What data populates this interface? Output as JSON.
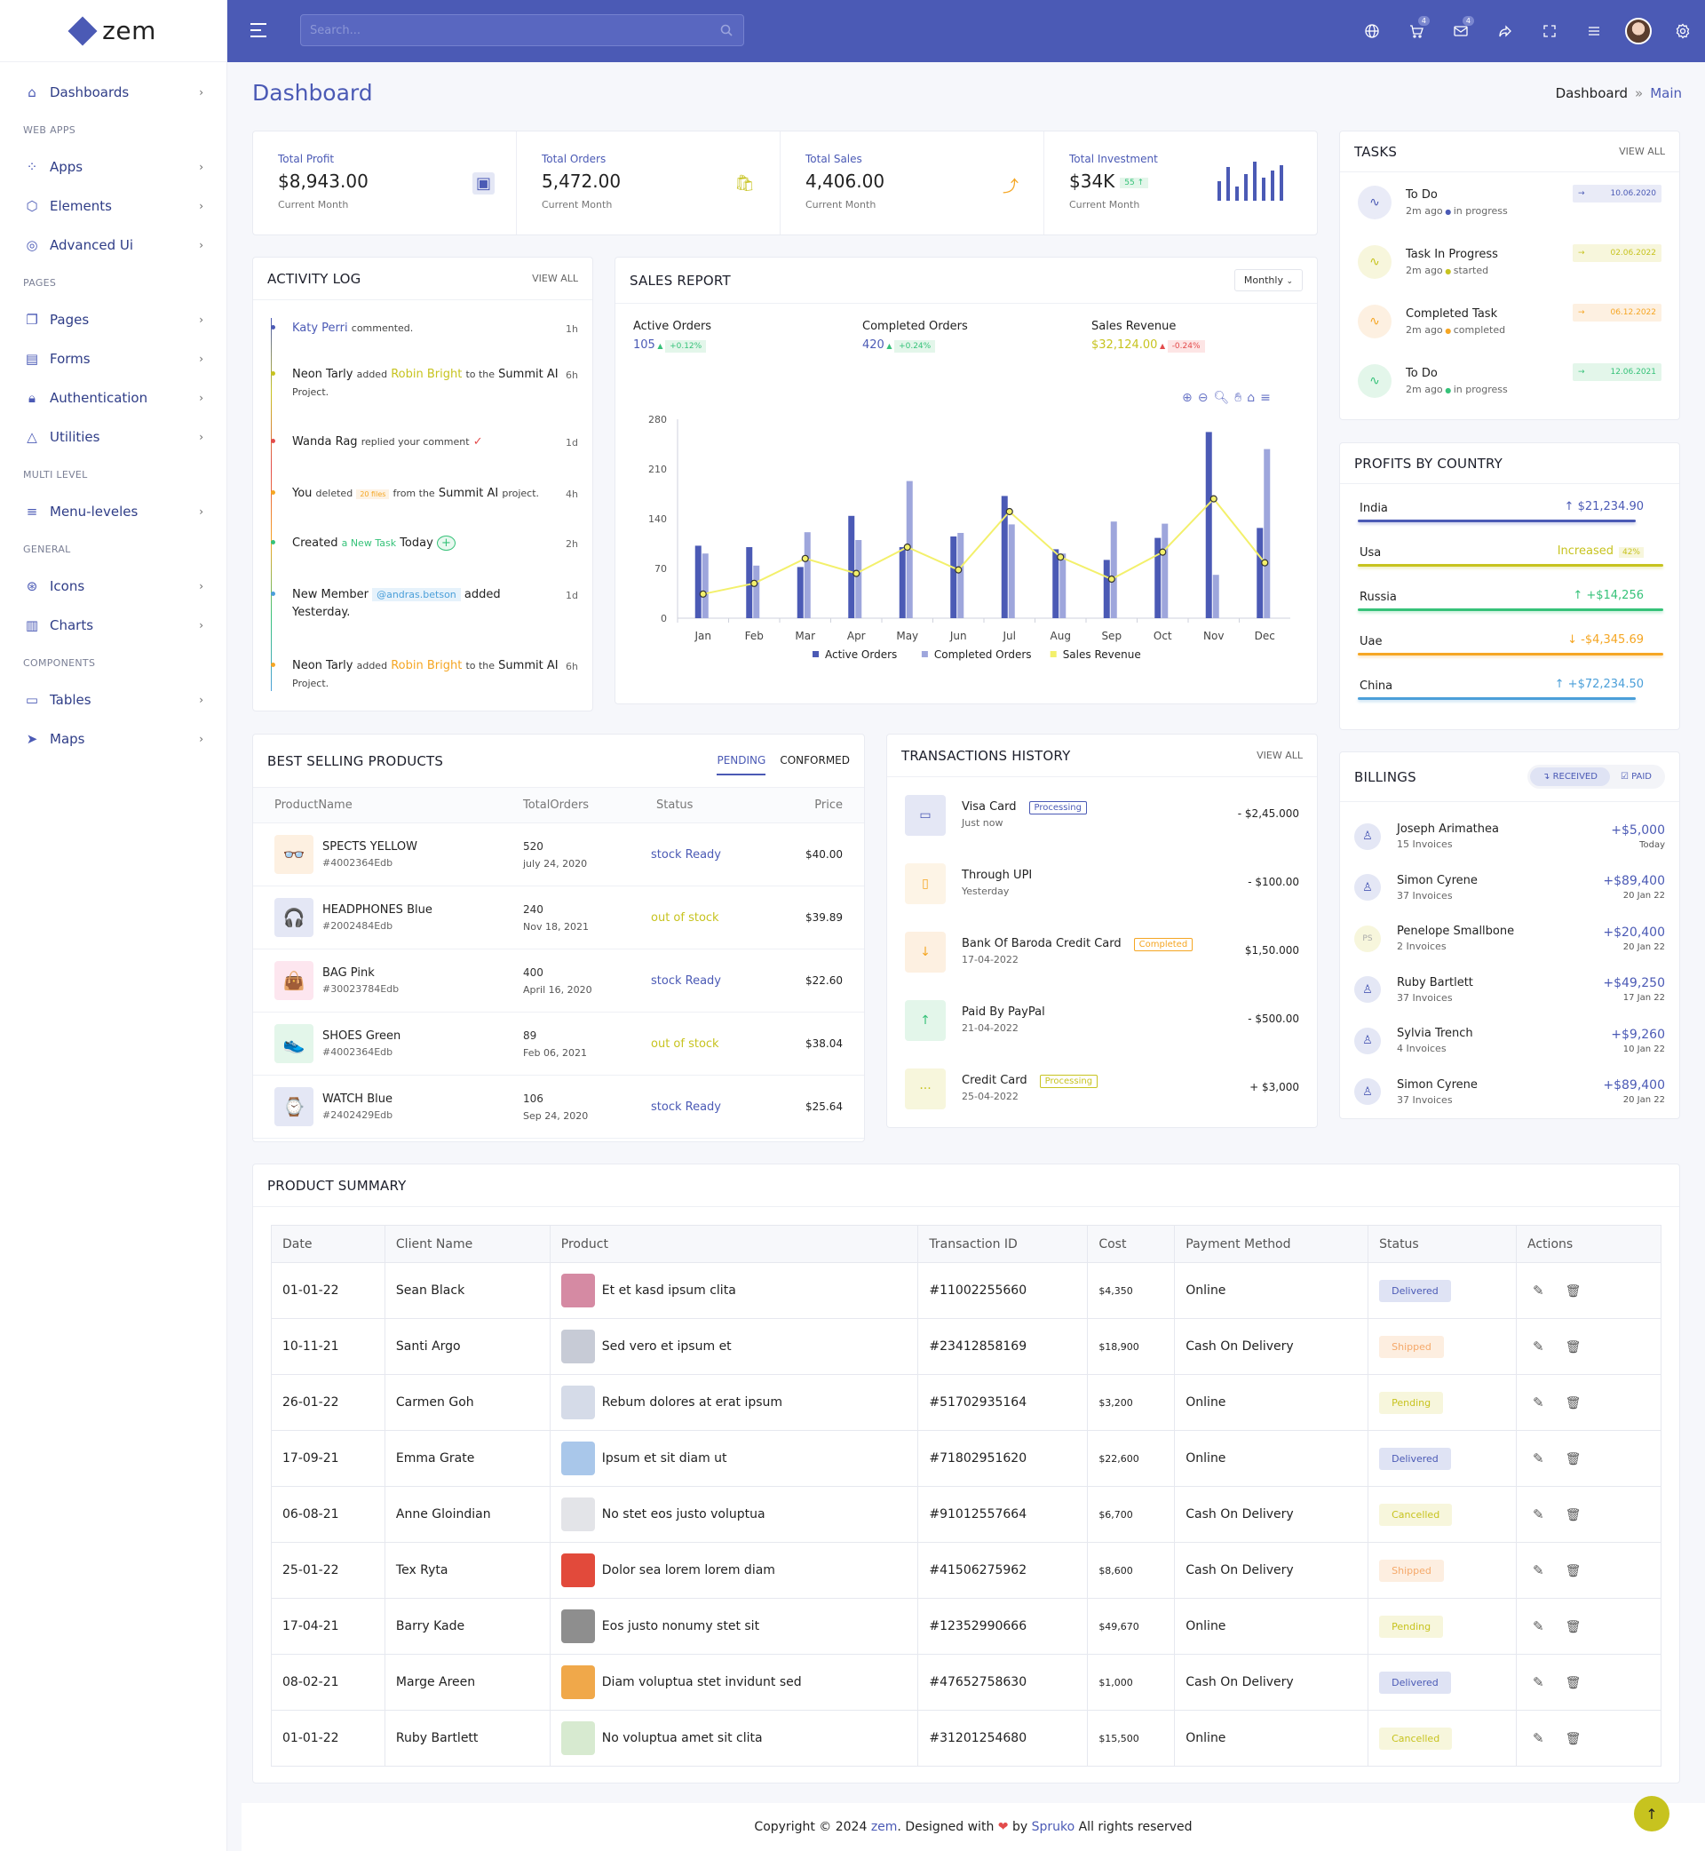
{
  "app": {
    "name": "zem"
  },
  "sidebar": {
    "items": [
      {
        "type": "item",
        "label": "Dashboards",
        "icon": "home-icon"
      },
      {
        "type": "cat",
        "label": "WEB APPS"
      },
      {
        "type": "item",
        "label": "Apps",
        "icon": "grid-icon"
      },
      {
        "type": "item",
        "label": "Elements",
        "icon": "cube-icon"
      },
      {
        "type": "item",
        "label": "Advanced Ui",
        "icon": "palette-icon"
      },
      {
        "type": "cat",
        "label": "PAGES"
      },
      {
        "type": "item",
        "label": "Pages",
        "icon": "pages-icon"
      },
      {
        "type": "item",
        "label": "Forms",
        "icon": "file-icon"
      },
      {
        "type": "item",
        "label": "Authentication",
        "icon": "lock-icon"
      },
      {
        "type": "item",
        "label": "Utilities",
        "icon": "shapes-icon"
      },
      {
        "type": "cat",
        "label": "MULTI LEVEL"
      },
      {
        "type": "item",
        "label": "Menu-leveles",
        "icon": "menu-icon"
      },
      {
        "type": "cat",
        "label": "GENERAL"
      },
      {
        "type": "item",
        "label": "Icons",
        "icon": "globe-icon"
      },
      {
        "type": "item",
        "label": "Charts",
        "icon": "bar-chart-icon"
      },
      {
        "type": "cat",
        "label": "COMPONENTS"
      },
      {
        "type": "item",
        "label": "Tables",
        "icon": "table-icon"
      },
      {
        "type": "item",
        "label": "Maps",
        "icon": "send-icon"
      }
    ]
  },
  "header": {
    "search_placeholder": "Search...",
    "cart_badge": "4",
    "mail_badge": "4"
  },
  "page": {
    "title": "Dashboard",
    "crumb_root": "Dashboard",
    "crumb_sep": "»",
    "crumb_current": "Main"
  },
  "stats": [
    {
      "label": "Total Profit",
      "value": "$8,943.00",
      "sub": "Current Month",
      "icon": "wallet-icon",
      "color": "#4b5ab5"
    },
    {
      "label": "Total Orders",
      "value": "5,472.00",
      "sub": "Current Month",
      "icon": "bag-icon",
      "color": "#c7c31f"
    },
    {
      "label": "Total Sales",
      "value": "4,406.00",
      "sub": "Current Month",
      "icon": "trend-up-icon",
      "color": "#f5a623"
    },
    {
      "label": "Total Investment",
      "value": "$34K",
      "badge": "55",
      "sub": "Current Month",
      "icon": "mini-bars",
      "color": "#4b5ab5"
    }
  ],
  "activity": {
    "title": "ACTIVITY LOG",
    "view_all": "VIEW ALL",
    "items": [
      {
        "html": "<span style='color:#4b5ab5'>Katy Perri</span> <small>commented.</small>",
        "time": "1h",
        "dot": "#4b5ab5",
        "top": 0
      },
      {
        "html": "Neon Tarly <small>added</small> <span style='color:#c7c31f'>Robin Bright</span> <small>to the</small> Summit AI <small>Project.</small>",
        "time": "6h",
        "dot": "#c7c31f",
        "top": 52
      },
      {
        "html": "Wanda Rag <small>replied your comment</small> <span style='color:#e34b4b'>✓</span>",
        "time": "1d",
        "dot": "#e34b4b",
        "top": 128
      },
      {
        "html": "You <small>deleted</small> <span style='font-size:8px;color:#f5a623;background:#fdf2e3;padding:1px 4px'>20 files</span> <small>from the</small> Summit AI <small>project.</small>",
        "time": "4h",
        "dot": "#f5a623",
        "top": 186
      },
      {
        "html": "Created <small style='color:#36c279'>a New Task</small> Today <span style='color:#36c279;border:1px solid #36c279;border-radius:50%;padding:0 4px;background:#e8f8ef'>+</span>",
        "time": "2h",
        "dot": "#36c279",
        "top": 242
      },
      {
        "html": "New Member <span style='font-size:11px;color:#4b9fd9;background:#e6f2fb;padding:1px 5px'>@andras.betson</span> added Yesterday.",
        "time": "1d",
        "dot": "#4b9fd9",
        "top": 300
      },
      {
        "html": "Neon Tarly <small>added</small> <span style='color:#f5a623'>Robin Bright</span> <small>to the</small> Summit AI <small>Project.</small>",
        "time": "6h",
        "dot": "#f5a623",
        "top": 380
      }
    ]
  },
  "sales": {
    "title": "SALES REPORT",
    "period": "Monthly",
    "kpis": [
      {
        "label": "Active Orders",
        "value": "105",
        "change": "+0.12%",
        "dir": "up",
        "color": "#4b5ab5",
        "badge_bg": "#e3f6ea",
        "badge_fg": "#36c279"
      },
      {
        "label": "Completed Orders",
        "value": "420",
        "change": "+0.24%",
        "dir": "up",
        "color": "#4b5ab5",
        "badge_bg": "#e3f6ea",
        "badge_fg": "#36c279"
      },
      {
        "label": "Sales Revenue",
        "value": "$32,124.00",
        "change": "-0.24%",
        "dir": "down",
        "color": "#c7c31f",
        "badge_bg": "#fde5e5",
        "badge_fg": "#e34b4b"
      }
    ]
  },
  "chart_data": {
    "type": "bar",
    "categories": [
      "Jan",
      "Feb",
      "Mar",
      "Apr",
      "May",
      "Jun",
      "Jul",
      "Aug",
      "Sep",
      "Oct",
      "Nov",
      "Dec"
    ],
    "ylim": [
      0,
      280
    ],
    "yticks": [
      0,
      70,
      140,
      210,
      280
    ],
    "series": [
      {
        "name": "Active Orders",
        "type": "bar",
        "color": "#4b5ab5",
        "values": [
          102,
          100,
          72,
          144,
          100,
          115,
          172,
          97,
          82,
          113,
          262,
          127
        ]
      },
      {
        "name": "Completed Orders",
        "type": "bar",
        "color": "#9ea6dc",
        "values": [
          91,
          74,
          121,
          110,
          193,
          120,
          132,
          91,
          136,
          133,
          61,
          238
        ]
      },
      {
        "name": "Sales Revenue",
        "type": "line",
        "color": "#f3f06b",
        "values": [
          34,
          49,
          84,
          63,
          100,
          68,
          150,
          86,
          55,
          93,
          168,
          78
        ]
      }
    ]
  },
  "tasks": {
    "title": "TASKS",
    "view_all": "VIEW ALL",
    "items": [
      {
        "name": "To Do",
        "time": "2m ago",
        "status": "in progress",
        "date": "10.06.2020",
        "color": "#4b5ab5",
        "bg": "#e9ebf7",
        "sdot": "#4b5ab5"
      },
      {
        "name": "Task In Progress",
        "time": "2m ago",
        "status": "started",
        "date": "02.06.2022",
        "color": "#c7c31f",
        "bg": "#f7f6dc",
        "sdot": "#c7c31f"
      },
      {
        "name": "Completed Task",
        "time": "2m ago",
        "status": "completed",
        "date": "06.12.2022",
        "color": "#f5a623",
        "bg": "#fdf0e1",
        "sdot": "#f5a623"
      },
      {
        "name": "To Do",
        "time": "2m ago",
        "status": "in progress",
        "date": "12.06.2021",
        "color": "#36c279",
        "bg": "#e3f6ea",
        "sdot": "#36c279"
      }
    ]
  },
  "profits": {
    "title": "PROFITS BY COUNTRY",
    "items": [
      {
        "country": "India",
        "value": "$21,234.90",
        "arrow": "↑",
        "color": "#4b5ab5",
        "pct": 0.91
      },
      {
        "country": "Usa",
        "value": "Increased",
        "extra": "42%",
        "arrow": "",
        "color": "#c7c31f",
        "pct": 1.0
      },
      {
        "country": "Russia",
        "value": "+$14,256",
        "arrow": "↑",
        "color": "#36c279",
        "pct": 1.0
      },
      {
        "country": "Uae",
        "value": "-$4,345.69",
        "arrow": "↓",
        "color": "#f5a623",
        "pct": 1.0
      },
      {
        "country": "China",
        "value": "+$72,234.50",
        "arrow": "↑",
        "color": "#4b9fd9",
        "pct": 0.91
      }
    ]
  },
  "best_selling": {
    "title": "BEST SELLING PRODUCTS",
    "tabs": [
      "PENDING",
      "CONFORMED"
    ],
    "headers": [
      "ProductName",
      "TotalOrders",
      "Status",
      "Price"
    ],
    "rows": [
      {
        "name": "SPECTS YELLOW",
        "id": "#4002364Edb",
        "orders": "520",
        "date": "july 24, 2020",
        "status": "stock Ready",
        "price": "$40.00",
        "img_bg": "#fdf0e1",
        "img": "👓",
        "scolor": "#4b5ab5"
      },
      {
        "name": "HEADPHONES Blue",
        "id": "#2002484Edb",
        "orders": "240",
        "date": "Nov 18, 2021",
        "status": "out of stock",
        "price": "$39.89",
        "img_bg": "#e4e7f5",
        "img": "🎧",
        "scolor": "#c7c31f"
      },
      {
        "name": "BAG Pink",
        "id": "#30023784Edb",
        "orders": "400",
        "date": "April 16, 2020",
        "status": "stock Ready",
        "price": "$22.60",
        "img_bg": "#fde6ef",
        "img": "👜",
        "scolor": "#4b5ab5"
      },
      {
        "name": "SHOES Green",
        "id": "#4002364Edb",
        "orders": "89",
        "date": "Feb 06, 2021",
        "status": "out of stock",
        "price": "$38.04",
        "img_bg": "#e3f6ea",
        "img": "👟",
        "scolor": "#c7c31f"
      },
      {
        "name": "WATCH Blue",
        "id": "#2402429Edb",
        "orders": "106",
        "date": "Sep 24, 2020",
        "status": "stock Ready",
        "price": "$25.64",
        "img_bg": "#e4e7f5",
        "img": "⌚",
        "scolor": "#4b5ab5"
      }
    ]
  },
  "transactions": {
    "title": "TRANSACTIONS HISTORY",
    "view_all": "VIEW ALL",
    "items": [
      {
        "name": "Visa Card",
        "sub": "Just now",
        "tag": "Processing",
        "tag_color": "#4b5ab5",
        "amount": "- $2,45.000",
        "icon": "card-icon",
        "glyph": "▭",
        "bg": "#e4e7f5",
        "fg": "#4b5ab5"
      },
      {
        "name": "Through UPI",
        "sub": "Yesterday",
        "tag": "",
        "amount": "- $100.00",
        "icon": "phone-icon",
        "glyph": "▯",
        "bg": "#fdf4e6",
        "fg": "#f5a623"
      },
      {
        "name": "Bank Of Baroda Credit Card",
        "sub": "17-04-2022",
        "tag": "Completed",
        "tag_color": "#f5a623",
        "amount": "$1,50.000",
        "icon": "arrow-down-icon",
        "glyph": "↓",
        "bg": "#fdf0e1",
        "fg": "#f5a623"
      },
      {
        "name": "Paid By PayPal",
        "sub": "21-04-2022",
        "tag": "",
        "amount": "- $500.00",
        "icon": "arrow-up-icon",
        "glyph": "↑",
        "bg": "#e3f6ea",
        "fg": "#36c279"
      },
      {
        "name": "Credit Card",
        "sub": "25-04-2022",
        "tag": "Processing",
        "tag_color": "#c7c31f",
        "amount": "+ $3,000",
        "icon": "dots-icon",
        "glyph": "···",
        "bg": "#f7f6dc",
        "fg": "#c7c31f"
      }
    ]
  },
  "billings": {
    "title": "BILLINGS",
    "tabs": [
      "RECEIVED",
      "PAID"
    ],
    "items": [
      {
        "name": "Joseph Arimathea",
        "sub": "15 Invoices",
        "amount": "+$5,000",
        "date": "Today",
        "initials": ""
      },
      {
        "name": "Simon Cyrene",
        "sub": "37 Invoices",
        "amount": "+$89,400",
        "date": "20 Jan 22",
        "initials": ""
      },
      {
        "name": "Penelope Smallbone",
        "sub": "2 Invoices",
        "amount": "+$20,400",
        "date": "20 Jan 22",
        "initials": "PS"
      },
      {
        "name": "Ruby Bartlett",
        "sub": "37 Invoices",
        "amount": "+$49,250",
        "date": "17 Jan 22",
        "initials": ""
      },
      {
        "name": "Sylvia Trench",
        "sub": "4 Invoices",
        "amount": "+$9,260",
        "date": "10 Jan 22",
        "initials": ""
      },
      {
        "name": "Simon Cyrene",
        "sub": "37 Invoices",
        "amount": "+$89,400",
        "date": "20 Jan 22",
        "initials": ""
      }
    ]
  },
  "summary": {
    "title": "PRODUCT SUMMARY",
    "headers": [
      "Date",
      "Client Name",
      "Product",
      "Transaction ID",
      "Cost",
      "Payment Method",
      "Status",
      "Actions"
    ],
    "rows": [
      {
        "date": "01-01-22",
        "client": "Sean Black",
        "product": "Et et kasd ipsum clita",
        "txn": "#11002255660",
        "cost": "$4,350",
        "method": "Online",
        "status": "Delivered",
        "thumb": "#d58aa3"
      },
      {
        "date": "10-11-21",
        "client": "Santi Argo",
        "product": "Sed vero et ipsum et",
        "txn": "#23412858169",
        "cost": "$18,900",
        "method": "Cash On Delivery",
        "status": "Shipped",
        "thumb": "#c7cbd6"
      },
      {
        "date": "26-01-22",
        "client": "Carmen Goh",
        "product": "Rebum dolores at erat ipsum",
        "txn": "#51702935164",
        "cost": "$3,200",
        "method": "Online",
        "status": "Pending",
        "thumb": "#d5dbe8"
      },
      {
        "date": "17-09-21",
        "client": "Emma Grate",
        "product": "Ipsum et sit diam ut",
        "txn": "#71802951620",
        "cost": "$22,600",
        "method": "Online",
        "status": "Delivered",
        "thumb": "#a9c7ea"
      },
      {
        "date": "06-08-21",
        "client": "Anne Gloindian",
        "product": "No stet eos justo voluptua",
        "txn": "#91012557664",
        "cost": "$6,700",
        "method": "Cash On Delivery",
        "status": "Cancelled",
        "thumb": "#e3e4e8"
      },
      {
        "date": "25-01-22",
        "client": "Tex Ryta",
        "product": "Dolor sea lorem lorem diam",
        "txn": "#41506275962",
        "cost": "$8,600",
        "method": "Cash On Delivery",
        "status": "Shipped",
        "thumb": "#e24a3b"
      },
      {
        "date": "17-04-21",
        "client": "Barry Kade",
        "product": "Eos justo nonumy stet sit",
        "txn": "#12352990666",
        "cost": "$49,670",
        "method": "Online",
        "status": "Pending",
        "thumb": "#8e8e8e"
      },
      {
        "date": "08-02-21",
        "client": "Marge Areen",
        "product": "Diam voluptua stet invidunt sed",
        "txn": "#47652758630",
        "cost": "$1,000",
        "method": "Cash On Delivery",
        "status": "Delivered",
        "thumb": "#f0a84a"
      },
      {
        "date": "01-01-22",
        "client": "Ruby Bartlett",
        "product": "No voluptua amet sit clita",
        "txn": "#31201254680",
        "cost": "$15,500",
        "method": "Online",
        "status": "Cancelled",
        "thumb": "#d7ead0"
      }
    ]
  },
  "status_styles": {
    "Delivered": {
      "bg": "#dfe3f4",
      "fg": "#4b5ab5"
    },
    "Shipped": {
      "bg": "#fdeee0",
      "fg": "#f5a96a"
    },
    "Pending": {
      "bg": "#f7f6dc",
      "fg": "#c7c31f"
    },
    "Cancelled": {
      "bg": "#f7f6dc",
      "fg": "#c7c31f"
    }
  },
  "footer": {
    "pre": "Copyright © 2024 ",
    "brand": "zem",
    "mid": ". Designed with ",
    "heart": "❤",
    "by": " by ",
    "author": "Spruko",
    "post": " All rights reserved"
  }
}
